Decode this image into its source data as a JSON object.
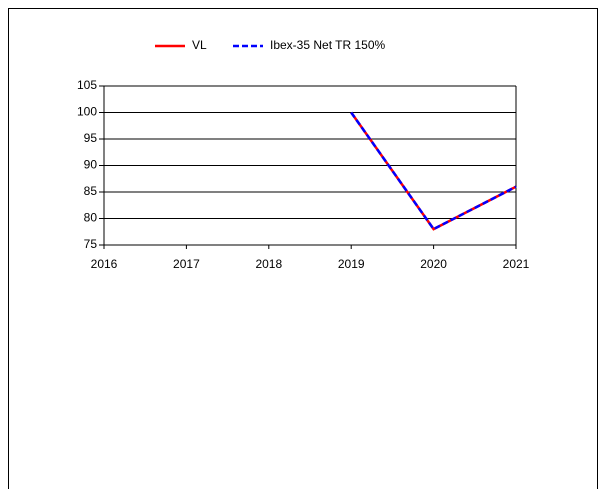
{
  "chart_data": {
    "type": "line",
    "x": [
      2016,
      2017,
      2018,
      2019,
      2020,
      2021
    ],
    "series": [
      {
        "name": "VL",
        "color": "#ff0000",
        "dashed": false,
        "values": [
          null,
          null,
          null,
          100,
          78,
          86
        ]
      },
      {
        "name": "Ibex-35 Net TR 150%",
        "color": "#0000ff",
        "dashed": true,
        "values": [
          null,
          null,
          null,
          100,
          78,
          86
        ]
      }
    ],
    "xlim": [
      2016,
      2021
    ],
    "xticks": [
      2016,
      2017,
      2018,
      2019,
      2020,
      2021
    ],
    "ylim": [
      75,
      105
    ],
    "yticks": [
      75,
      80,
      85,
      90,
      95,
      100,
      105
    ],
    "grid": true,
    "legend": "top"
  }
}
